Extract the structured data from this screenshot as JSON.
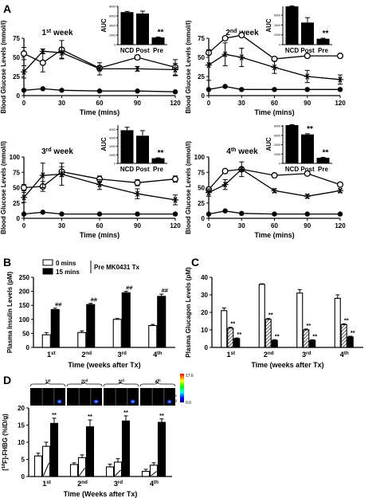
{
  "figure": {
    "panels": {
      "A": "A",
      "B": "B",
      "C": "C",
      "D": "D"
    },
    "scan_scale": {
      "max": "17.6",
      "min": "0.0",
      "label_lines": [
        "Scale",
        "% ID/g"
      ]
    },
    "colors": {
      "line": "#000000",
      "hatch": "#555555",
      "colorbar": [
        "#ff0000",
        "#ffff00",
        "#00ff00",
        "#00ffff",
        "#0000ff",
        "#000080"
      ]
    }
  },
  "chart_data": [
    {
      "id": "A1",
      "type": "line",
      "title": "1st week",
      "title_parts": {
        "n": "1",
        "sup": "st",
        "rest": " week"
      },
      "xlabel": "Time (mins)",
      "ylabel": "Blood Glucose Levels (mmol/l)",
      "x": [
        0,
        15,
        30,
        60,
        90,
        120
      ],
      "xlim": [
        0,
        120
      ],
      "ylim": [
        0,
        75
      ],
      "yticks": [
        0,
        25,
        50,
        75
      ],
      "xticks": [
        0,
        30,
        60,
        90,
        120
      ],
      "series": [
        {
          "marker": "open",
          "values": [
            55,
            43,
            60,
            36,
            50,
            37
          ],
          "err": [
            8,
            12,
            12,
            3,
            3,
            10
          ]
        },
        {
          "marker": "star",
          "values": [
            31,
            58,
            56,
            35,
            35,
            34
          ],
          "err": [
            8,
            3,
            7,
            8,
            3,
            8
          ]
        },
        {
          "marker": "filled",
          "values": [
            7,
            9,
            7,
            6,
            6,
            5
          ],
          "err": [
            1,
            1,
            1,
            1,
            1,
            1
          ]
        }
      ],
      "inset": {
        "ylabel": "AUC",
        "categories": [
          "NCD",
          "Post",
          "Pre"
        ],
        "values": [
          6800,
          6500,
          1500
        ],
        "err": [
          150,
          500,
          100
        ],
        "yticks": [
          "0",
          "2000",
          "4000",
          "6000",
          "8000"
        ],
        "ylim": [
          0,
          8000
        ],
        "sig": [
          "",
          "",
          "**"
        ]
      }
    },
    {
      "id": "A2",
      "type": "line",
      "title": "2nd week",
      "title_parts": {
        "n": "2",
        "sup": "nd",
        "rest": " week"
      },
      "xlabel": "Time (mins)",
      "ylabel": "Blood Glucose Levels (mmol/l)",
      "x": [
        0,
        15,
        30,
        60,
        90,
        120
      ],
      "xlim": [
        0,
        120
      ],
      "ylim": [
        0,
        75
      ],
      "yticks": [
        0,
        25,
        50,
        75
      ],
      "xticks": [
        0,
        30,
        60,
        90,
        120
      ],
      "series": [
        {
          "marker": "open",
          "values": [
            56,
            75,
            79,
            48,
            52,
            52
          ],
          "err": [
            2,
            2,
            2,
            2,
            1,
            1
          ]
        },
        {
          "marker": "star",
          "values": [
            40,
            54,
            50,
            37,
            25,
            21
          ],
          "err": [
            20,
            15,
            12,
            8,
            8,
            6
          ]
        },
        {
          "marker": "filled",
          "values": [
            8,
            12,
            8,
            8,
            8,
            8
          ],
          "err": [
            1,
            1,
            1,
            1,
            1,
            1
          ]
        }
      ],
      "inset": {
        "ylabel": "AUC",
        "categories": [
          "NCD",
          "Post",
          "Pre"
        ],
        "values": [
          7800,
          4500,
          1200
        ],
        "err": [
          100,
          1000,
          100
        ],
        "yticks": [
          "0",
          "2000",
          "4000",
          "6000"
        ],
        "ylim": [
          0,
          7800
        ],
        "sig": [
          "",
          "",
          "**"
        ]
      }
    },
    {
      "id": "A3",
      "type": "line",
      "title": "3rd week",
      "title_parts": {
        "n": "3",
        "sup": "rd",
        "rest": " week"
      },
      "xlabel": "Time (mins)",
      "ylabel": "Blood Glucose Levels (mmol/l)",
      "x": [
        0,
        15,
        30,
        60,
        90,
        120
      ],
      "xlim": [
        0,
        120
      ],
      "ylim": [
        0,
        100
      ],
      "yticks": [
        0,
        25,
        50,
        75,
        100
      ],
      "xticks": [
        0,
        30,
        60,
        90,
        120
      ],
      "series": [
        {
          "marker": "open",
          "values": [
            50,
            52,
            76,
            64,
            58,
            64
          ],
          "err": [
            5,
            8,
            8,
            5,
            5,
            5
          ]
        },
        {
          "marker": "star",
          "values": [
            34,
            70,
            72,
            55,
            40,
            30
          ],
          "err": [
            8,
            20,
            18,
            8,
            8,
            8
          ]
        },
        {
          "marker": "filled",
          "values": [
            7,
            10,
            7,
            7,
            7,
            7
          ],
          "err": [
            1,
            1,
            1,
            1,
            1,
            1
          ]
        }
      ],
      "inset": {
        "ylabel": "AUC",
        "categories": [
          "NCD",
          "Post",
          "Pre"
        ],
        "values": [
          7800,
          6500,
          1200
        ],
        "err": [
          700,
          1200,
          100
        ],
        "yticks": [
          "0",
          "2000",
          "4000",
          "6000",
          "8000"
        ],
        "ylim": [
          0,
          9000
        ],
        "sig": [
          "",
          "",
          "**"
        ]
      }
    },
    {
      "id": "A4",
      "type": "line",
      "title": "4th week",
      "title_parts": {
        "n": "4",
        "sup": "th",
        "rest": " week"
      },
      "xlabel": "Time (mins)",
      "ylabel": "Blood Glucose Levels (mmol/l)",
      "x": [
        0,
        15,
        30,
        60,
        90,
        120
      ],
      "xlim": [
        0,
        120
      ],
      "ylim": [
        0,
        100
      ],
      "yticks": [
        0,
        25,
        50,
        75,
        100
      ],
      "xticks": [
        0,
        30,
        60,
        90,
        120
      ],
      "series": [
        {
          "marker": "open",
          "values": [
            47,
            77,
            80,
            70,
            73,
            55
          ],
          "err": [
            3,
            2,
            2,
            2,
            2,
            2
          ]
        },
        {
          "marker": "star",
          "values": [
            42,
            55,
            80,
            45,
            36,
            45
          ],
          "err": [
            6,
            8,
            12,
            3,
            3,
            3
          ]
        },
        {
          "marker": "filled",
          "values": [
            7,
            12,
            8,
            7,
            7,
            7
          ],
          "err": [
            1,
            1,
            1,
            1,
            1,
            1
          ]
        }
      ],
      "inset": {
        "ylabel": "AUC",
        "categories": [
          "NCD",
          "Post",
          "Pre"
        ],
        "values": [
          8200,
          6200,
          1200
        ],
        "err": [
          100,
          150,
          100
        ],
        "yticks": [
          "0",
          "2000",
          "4000",
          "6000",
          "8000"
        ],
        "ylim": [
          0,
          8200
        ],
        "sig": [
          "",
          "**",
          "**"
        ]
      }
    },
    {
      "id": "B",
      "type": "bar",
      "xlabel": "Time (weeks after Tx)",
      "ylabel": "Plasma Insulin Levels (pM)",
      "categories": [
        "1st",
        "2nd",
        "3rd",
        "4th"
      ],
      "cat_parts": [
        [
          "1",
          "st"
        ],
        [
          "2",
          "nd"
        ],
        [
          "3",
          "rd"
        ],
        [
          "4",
          "th"
        ]
      ],
      "ylim": [
        0,
        250
      ],
      "yticks": [
        0,
        50,
        100,
        150,
        200,
        250
      ],
      "legend": {
        "items": [
          "0 mins",
          "15 mins"
        ],
        "group": "Pre MK0431 Tx"
      },
      "series": [
        {
          "name": "0 mins",
          "fill": "white",
          "values": [
            45,
            53,
            100,
            78
          ],
          "err": [
            8,
            6,
            3,
            4
          ]
        },
        {
          "name": "15 mins",
          "fill": "black",
          "values": [
            135,
            153,
            195,
            182
          ],
          "err": [
            5,
            4,
            5,
            8
          ]
        }
      ],
      "annotations": [
        [
          "",
          "##"
        ],
        [
          "",
          "##"
        ],
        [
          "",
          "##"
        ],
        [
          "",
          "##"
        ]
      ]
    },
    {
      "id": "C",
      "type": "bar",
      "xlabel": "Time (weeks after Tx)",
      "ylabel": "Plasma Glucagon Levels (pM)",
      "categories": [
        "1st",
        "2nd",
        "3rd",
        "4th"
      ],
      "cat_parts": [
        [
          "1",
          "st"
        ],
        [
          "2",
          "nd"
        ],
        [
          "3",
          "rd"
        ],
        [
          "4",
          "th"
        ]
      ],
      "ylim": [
        0,
        40
      ],
      "yticks": [
        0,
        10,
        20,
        30,
        40
      ],
      "series": [
        {
          "fill": "white",
          "values": [
            21,
            36,
            31,
            28
          ],
          "err": [
            1.5,
            0.3,
            2,
            2
          ]
        },
        {
          "fill": "hatch",
          "values": [
            11,
            16,
            10,
            13
          ],
          "err": [
            0.5,
            0.5,
            0.5,
            0.5
          ]
        },
        {
          "fill": "black",
          "values": [
            5,
            4,
            4,
            6
          ],
          "err": [
            0.4,
            0.4,
            0.4,
            0.4
          ]
        }
      ],
      "annotations": [
        [
          "",
          "**",
          "**"
        ],
        [
          "",
          "**",
          "**"
        ],
        [
          "",
          "**",
          "**"
        ],
        [
          "",
          "**",
          "**"
        ]
      ]
    },
    {
      "id": "D",
      "type": "bar",
      "xlabel": "Time (Weeks after Tx)",
      "ylabel": "[18F]-FHBG (%ID/g)",
      "ylabel_parts": {
        "pre": "[",
        "sup": "18",
        "post": "F]-FHBG (%ID/g)"
      },
      "categories": [
        "1st",
        "2nd",
        "3rd",
        "4th"
      ],
      "cat_parts": [
        [
          "1",
          "st"
        ],
        [
          "2",
          "nd"
        ],
        [
          "3",
          "rd"
        ],
        [
          "4",
          "th"
        ]
      ],
      "ylim": [
        0,
        20
      ],
      "yticks": [
        0,
        5,
        10,
        15,
        20
      ],
      "series": [
        {
          "fill": "white",
          "values": [
            6,
            3.5,
            2.8,
            1.5
          ],
          "err": [
            0.8,
            0.5,
            0.8,
            0.6
          ]
        },
        {
          "fill": "slash",
          "values": [
            8.8,
            5.5,
            4.2,
            3.3
          ],
          "err": [
            1.2,
            0.8,
            1,
            0.7
          ]
        },
        {
          "fill": "black",
          "values": [
            15.5,
            14.5,
            16.2,
            15.8
          ],
          "err": [
            1.5,
            2,
            1.5,
            1
          ]
        }
      ],
      "annotations": [
        [
          "",
          "",
          "**"
        ],
        [
          "",
          "",
          "**"
        ],
        [
          "",
          "",
          "**"
        ],
        [
          "",
          "",
          "**"
        ]
      ]
    }
  ]
}
